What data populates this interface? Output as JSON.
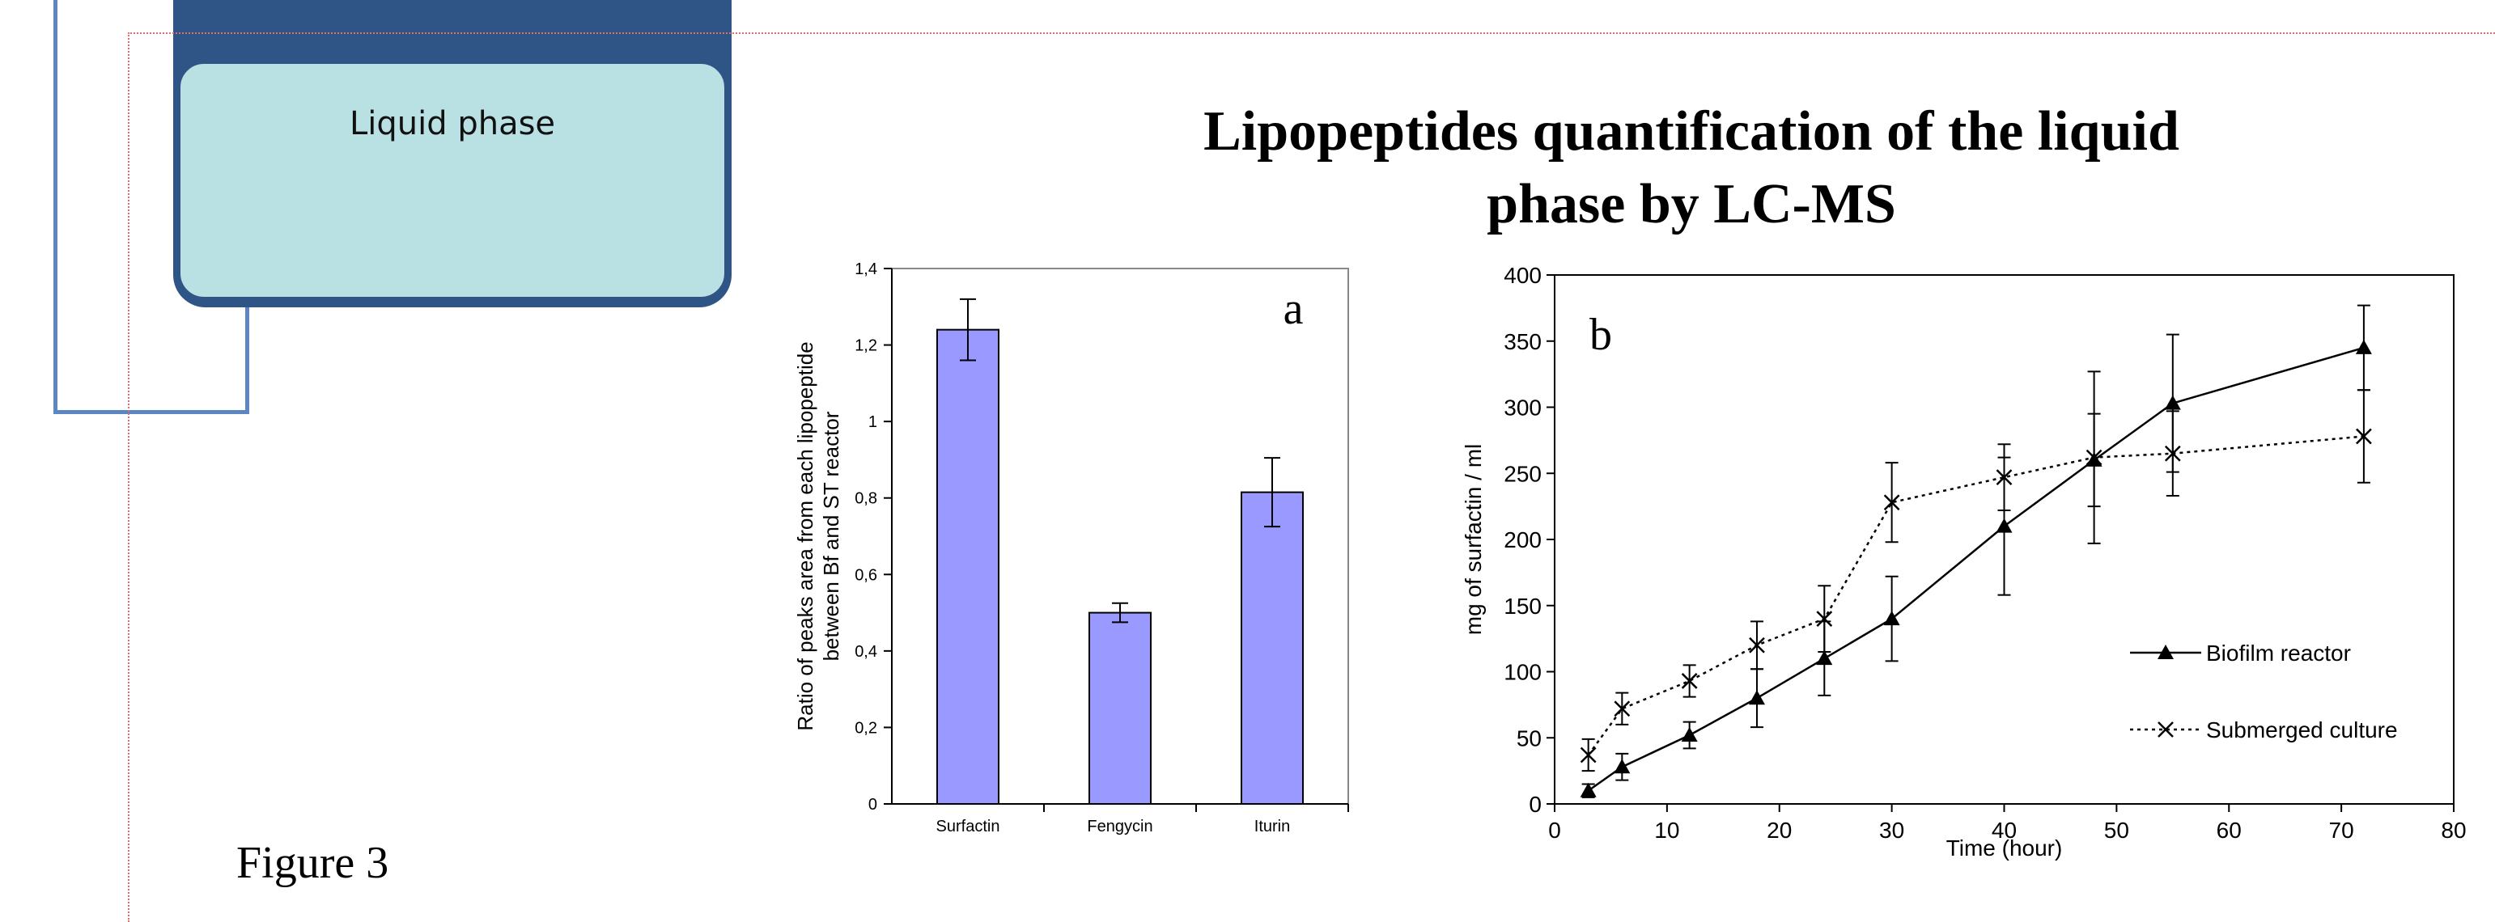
{
  "diagram": {
    "liquid_phase_label": "Liquid phase"
  },
  "title_line1": "Lipopeptides quantification of the liquid",
  "title_line2": "phase by LC-MS",
  "figure_caption": "Figure 3",
  "chart_data": [
    {
      "type": "bar",
      "panel_label": "a",
      "categories": [
        "Surfactin",
        "Fengycin",
        "Iturin"
      ],
      "values": [
        1.24,
        0.5,
        0.815
      ],
      "errors": [
        0.08,
        0.025,
        0.09
      ],
      "ylabel_line1": "Ratio of peaks area from each lipopeptide",
      "ylabel_line2": "between Bf and ST reactor",
      "ylim": [
        0,
        1.4
      ],
      "yticks": [
        0,
        0.2,
        0.4,
        0.6,
        0.8,
        1,
        1.2,
        1.4
      ],
      "ytick_labels": [
        "0",
        "0,2",
        "0,4",
        "0,6",
        "0,8",
        "1",
        "1,2",
        "1,4"
      ],
      "bar_color": "#9999ff",
      "grid": false
    },
    {
      "type": "line",
      "panel_label": "b",
      "xlabel": "Time (hour)",
      "ylabel": "mg of surfactin / ml",
      "xlim": [
        0,
        80
      ],
      "ylim": [
        0,
        400
      ],
      "xticks": [
        0,
        10,
        20,
        30,
        40,
        50,
        60,
        70,
        80
      ],
      "yticks": [
        0,
        50,
        100,
        150,
        200,
        250,
        300,
        350,
        400
      ],
      "legend_position": "right",
      "grid": false,
      "series": [
        {
          "name": "Biofilm reactor",
          "marker": "triangle",
          "line": "solid",
          "x": [
            3,
            6,
            12,
            18,
            24,
            30,
            40,
            48,
            55,
            72
          ],
          "y": [
            10,
            28,
            52,
            80,
            110,
            140,
            210,
            260,
            303,
            345
          ],
          "err": [
            5,
            10,
            10,
            22,
            28,
            32,
            52,
            35,
            52,
            32
          ]
        },
        {
          "name": "Submerged culture",
          "marker": "x",
          "line": "dotted",
          "x": [
            3,
            6,
            12,
            18,
            24,
            30,
            40,
            48,
            55,
            72
          ],
          "y": [
            37,
            72,
            93,
            120,
            140,
            228,
            247,
            262,
            265,
            278
          ],
          "err": [
            12,
            12,
            12,
            18,
            25,
            30,
            25,
            65,
            32,
            35
          ]
        }
      ]
    }
  ]
}
